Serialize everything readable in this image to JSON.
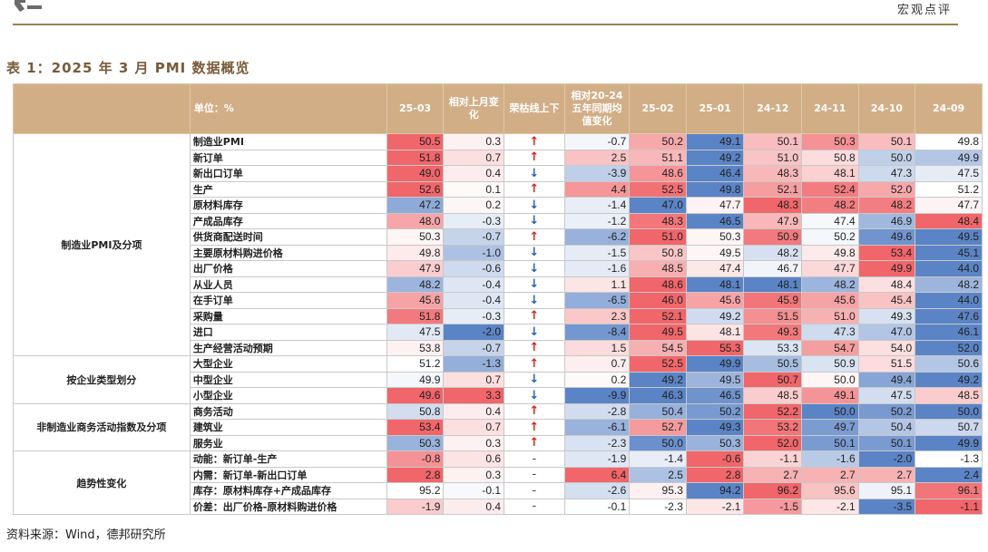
{
  "header": {
    "section": "宏观点评"
  },
  "title": "表 1：2025 年 3 月 PMI 数据概览",
  "source": "资料来源：Wind，德邦研究所",
  "table": {
    "unit": "单位：%",
    "columns": [
      "25-03",
      "相对上月变化",
      "荣枯线上下",
      "相对20-24五年同期均值变化",
      "25-02",
      "25-01",
      "24-12",
      "24-11",
      "24-10",
      "24-09"
    ],
    "groups": [
      {
        "name": "制造业PMI及分项",
        "rows": [
          {
            "label": "制造业PMI",
            "v": [
              "50.5",
              "0.3",
              "up",
              "-0.7",
              "50.2",
              "49.1",
              "50.1",
              "50.3",
              "50.1",
              "49.8"
            ]
          },
          {
            "label": "新订单",
            "v": [
              "51.8",
              "0.7",
              "up",
              "2.5",
              "51.1",
              "49.2",
              "51.0",
              "50.8",
              "50.0",
              "49.9"
            ]
          },
          {
            "label": "新出口订单",
            "v": [
              "49.0",
              "0.4",
              "down",
              "-3.9",
              "48.6",
              "46.4",
              "48.3",
              "48.1",
              "47.3",
              "47.5"
            ]
          },
          {
            "label": "生产",
            "v": [
              "52.6",
              "0.1",
              "up",
              "4.4",
              "52.5",
              "49.8",
              "52.1",
              "52.4",
              "52.0",
              "51.2"
            ]
          },
          {
            "label": "原材料库存",
            "v": [
              "47.2",
              "0.2",
              "down",
              "-1.4",
              "47.0",
              "47.7",
              "48.3",
              "48.2",
              "48.2",
              "47.7"
            ]
          },
          {
            "label": "产成品库存",
            "v": [
              "48.0",
              "-0.3",
              "down",
              "-1.2",
              "48.3",
              "46.5",
              "47.9",
              "47.4",
              "46.9",
              "48.4"
            ]
          },
          {
            "label": "供货商配送时间",
            "v": [
              "50.3",
              "-0.7",
              "up",
              "-6.2",
              "51.0",
              "50.3",
              "50.9",
              "50.2",
              "49.6",
              "49.5"
            ]
          },
          {
            "label": "主要原材料购进价格",
            "v": [
              "49.8",
              "-1.0",
              "down",
              "-1.5",
              "50.8",
              "49.5",
              "48.2",
              "49.8",
              "53.4",
              "45.1"
            ]
          },
          {
            "label": "出厂价格",
            "v": [
              "47.9",
              "-0.6",
              "down",
              "-1.6",
              "48.5",
              "47.4",
              "46.7",
              "47.7",
              "49.9",
              "44.0"
            ]
          },
          {
            "label": "从业人员",
            "v": [
              "48.2",
              "-0.4",
              "down",
              "1.1",
              "48.6",
              "48.1",
              "48.1",
              "48.2",
              "48.4",
              "48.2"
            ]
          },
          {
            "label": "在手订单",
            "v": [
              "45.6",
              "-0.4",
              "down",
              "-6.5",
              "46.0",
              "45.6",
              "45.9",
              "45.6",
              "45.4",
              "44.0"
            ]
          },
          {
            "label": "采购量",
            "v": [
              "51.8",
              "-0.3",
              "up",
              "2.3",
              "52.1",
              "49.2",
              "51.5",
              "51.0",
              "49.3",
              "47.6"
            ]
          },
          {
            "label": "进口",
            "v": [
              "47.5",
              "-2.0",
              "down",
              "-8.4",
              "49.5",
              "48.1",
              "49.3",
              "47.3",
              "47.0",
              "46.1"
            ]
          },
          {
            "label": "生产经营活动预期",
            "v": [
              "53.8",
              "-0.7",
              "up",
              "1.5",
              "54.5",
              "55.3",
              "53.3",
              "54.7",
              "54.0",
              "52.0"
            ]
          }
        ]
      },
      {
        "name": "按企业类型划分",
        "rows": [
          {
            "label": "大型企业",
            "v": [
              "51.2",
              "-1.3",
              "up",
              "0.7",
              "52.5",
              "49.9",
              "50.5",
              "50.9",
              "51.5",
              "50.6"
            ]
          },
          {
            "label": "中型企业",
            "v": [
              "49.9",
              "0.7",
              "down",
              "0.2",
              "49.2",
              "49.5",
              "50.7",
              "50.0",
              "49.4",
              "49.2"
            ]
          },
          {
            "label": "小型企业",
            "v": [
              "49.6",
              "3.3",
              "down",
              "-9.9",
              "46.3",
              "46.5",
              "48.5",
              "49.1",
              "47.5",
              "48.5"
            ]
          }
        ]
      },
      {
        "name": "非制造业商务活动指数及分项",
        "rows": [
          {
            "label": "商务活动",
            "v": [
              "50.8",
              "0.4",
              "up",
              "-2.8",
              "50.4",
              "50.2",
              "52.2",
              "50.0",
              "50.2",
              "50.0"
            ]
          },
          {
            "label": "建筑业",
            "v": [
              "53.4",
              "0.7",
              "up",
              "-6.1",
              "52.7",
              "49.3",
              "53.2",
              "49.7",
              "50.4",
              "50.7"
            ]
          },
          {
            "label": "服务业",
            "v": [
              "50.3",
              "0.3",
              "up",
              "-2.3",
              "50.0",
              "50.3",
              "52.0",
              "50.1",
              "50.1",
              "49.9"
            ]
          }
        ]
      },
      {
        "name": "趋势性变化",
        "rows": [
          {
            "label": "动能：新订单-生产",
            "v": [
              "-0.8",
              "0.6",
              "-",
              "-1.9",
              "-1.4",
              "-0.6",
              "-1.1",
              "-1.6",
              "-2.0",
              "-1.3"
            ]
          },
          {
            "label": "内需：新订单-新出口订单",
            "v": [
              "2.8",
              "0.3",
              "-",
              "6.4",
              "2.5",
              "2.8",
              "2.7",
              "2.7",
              "2.7",
              "2.4"
            ]
          },
          {
            "label": "库存：原材料库存+产成品库存",
            "v": [
              "95.2",
              "-0.1",
              "-",
              "-2.6",
              "95.3",
              "94.2",
              "96.2",
              "95.6",
              "95.1",
              "96.1"
            ]
          },
          {
            "label": "价差：出厂价格-原材料购进价格",
            "v": [
              "-1.9",
              "0.4",
              "-",
              "-0.1",
              "-2.3",
              "-2.1",
              "-1.5",
              "-2.1",
              "-3.5",
              "-1.1"
            ]
          }
        ]
      }
    ]
  },
  "colors": {
    "red": "#f0666a",
    "blue": "#5b84c6",
    "white": "#ffffff",
    "header": "#d2ae87"
  },
  "icons": {
    "up": "arrow-up-icon",
    "down": "arrow-down-icon",
    "flat": "dash-icon"
  }
}
